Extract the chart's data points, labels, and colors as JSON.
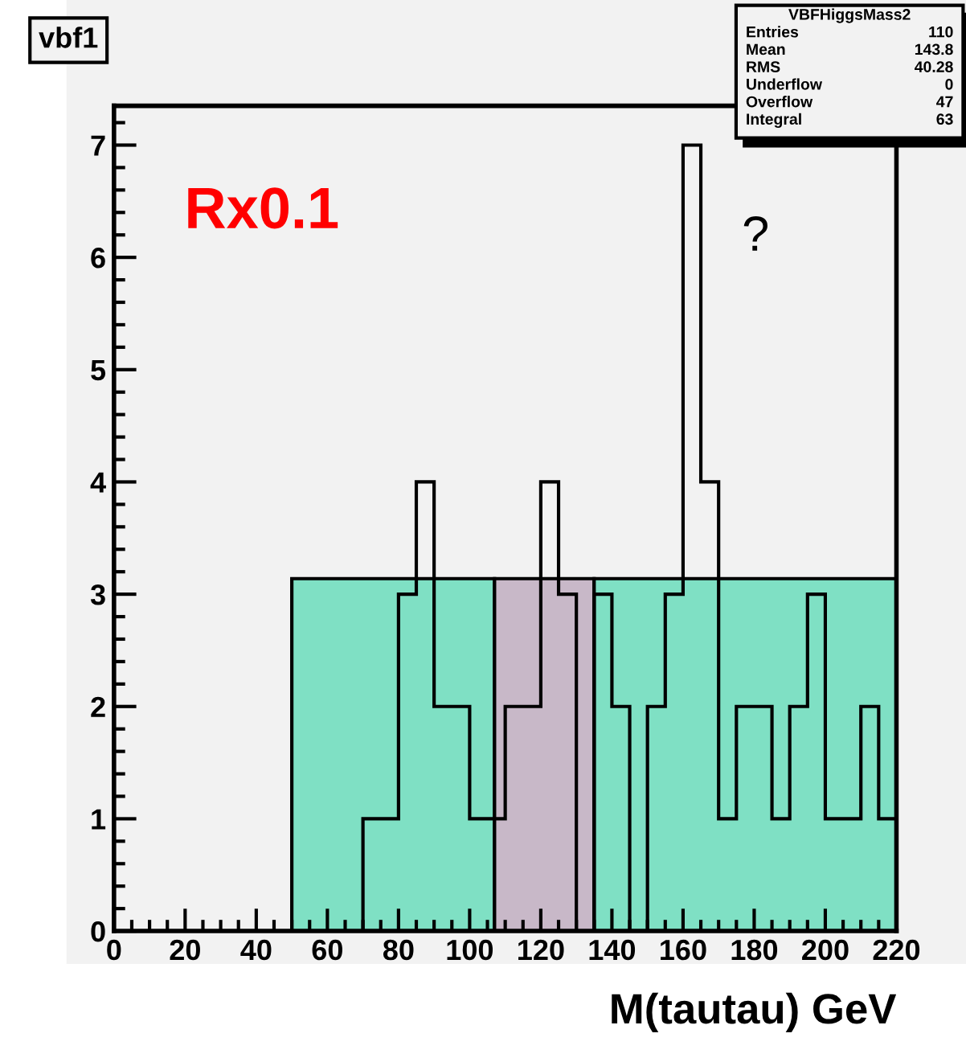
{
  "chart_data": {
    "type": "histogram",
    "title": "vbf1",
    "xlabel": "M(tautau) GeV",
    "bins": [
      0,
      5,
      10,
      15,
      20,
      25,
      30,
      35,
      40,
      45,
      50,
      55,
      60,
      65,
      70,
      75,
      80,
      85,
      90,
      95,
      100,
      105,
      110,
      115,
      120,
      125,
      130,
      135,
      140,
      145,
      150,
      155,
      160,
      165,
      170,
      175,
      180,
      185,
      190,
      195,
      200,
      205,
      210,
      215,
      220
    ],
    "values": [
      0,
      0,
      0,
      0,
      0,
      0,
      0,
      0,
      0,
      0,
      0,
      0,
      0,
      0,
      1,
      1,
      3,
      4,
      2,
      2,
      1,
      1,
      2,
      2,
      4,
      3,
      0,
      3,
      2,
      0,
      2,
      3,
      7,
      4,
      1,
      2,
      2,
      1,
      2,
      3,
      1,
      1,
      2,
      1
    ],
    "color": "#000000",
    "xlim": [
      0,
      220
    ],
    "ylim": [
      0,
      7.35
    ],
    "xticks": [
      0,
      20,
      40,
      60,
      80,
      100,
      120,
      140,
      160,
      180,
      200,
      220
    ],
    "yticks": [
      0,
      1,
      2,
      3,
      4,
      5,
      6,
      7
    ],
    "grid": false,
    "bands": [
      {
        "axis": "x",
        "from": 50,
        "to": 107,
        "color": "#7fe0c4"
      },
      {
        "axis": "x",
        "from": 107,
        "to": 135,
        "color": "#c8b8c8"
      },
      {
        "axis": "x",
        "from": 135,
        "to": 220,
        "color": "#7fe0c4"
      }
    ],
    "annotations": [
      "Rx0.1",
      "?",
      "VBFHiggsMass2",
      "Entries 110",
      "Mean 143.8",
      "RMS 40.28",
      "Underflow 0",
      "Overflow 47",
      "Integral 63"
    ]
  }
}
